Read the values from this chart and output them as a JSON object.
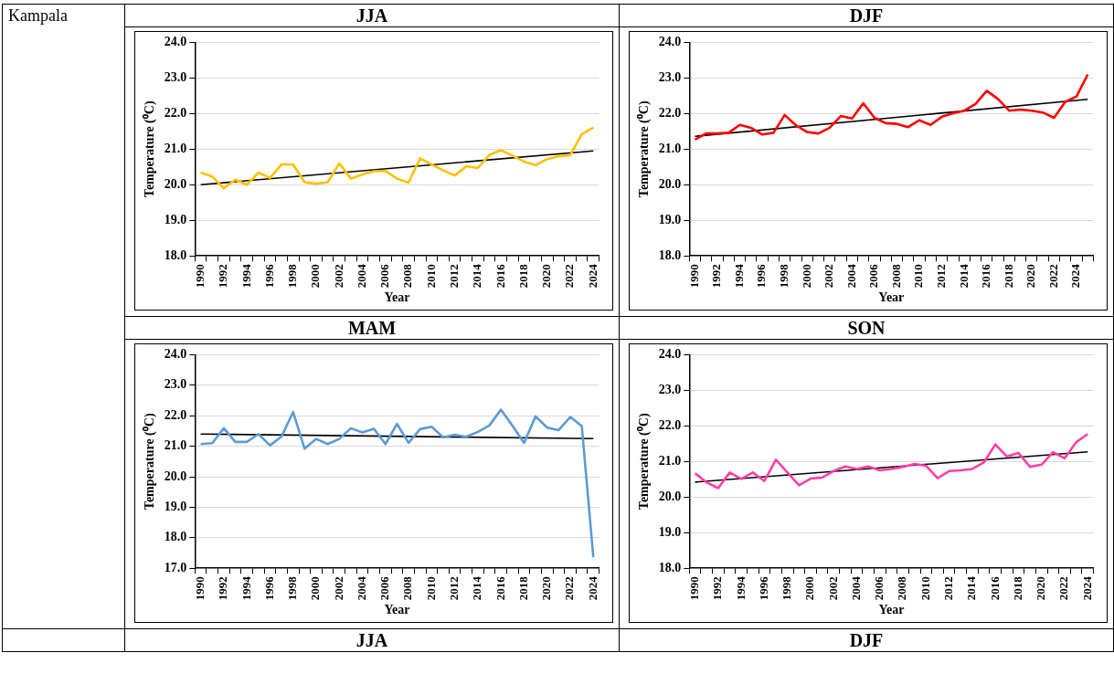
{
  "chart_data": [
    {
      "type": "line",
      "title": "JJA",
      "xlabel": "Year",
      "ylabel": "Temperature (⁰C)",
      "annotations": [
        "Kampala"
      ],
      "grid": "y",
      "legend": false,
      "marker": "none",
      "categories": [
        "1990",
        null,
        "1992",
        null,
        "1994",
        null,
        "1996",
        null,
        "1998",
        null,
        "2000",
        null,
        "2002",
        null,
        "2004",
        null,
        "2006",
        null,
        "2008",
        null,
        "2010",
        null,
        "2012",
        null,
        "2014",
        null,
        "2016",
        null,
        "2018",
        null,
        "2020",
        null,
        "2022",
        null,
        "2024"
      ],
      "ylim": [
        18,
        24
      ],
      "yticks": [
        {
          "value": 18,
          "label": "18.0"
        },
        {
          "value": 19,
          "label": "19.0"
        },
        {
          "value": 20,
          "label": "20.0"
        },
        {
          "value": 21,
          "label": "21.0"
        },
        {
          "value": 22,
          "label": "22.0"
        },
        {
          "value": 23,
          "label": "23.0"
        },
        {
          "value": 24,
          "label": "24.0"
        }
      ],
      "series": [
        {
          "color": "#ffc000",
          "values": [
            20.34,
            20.23,
            19.9,
            20.14,
            20.0,
            20.34,
            20.19,
            20.57,
            20.57,
            20.07,
            20.03,
            20.07,
            20.6,
            20.17,
            20.29,
            20.38,
            20.39,
            20.17,
            20.06,
            20.74,
            20.57,
            20.4,
            20.26,
            20.52,
            20.47,
            20.84,
            20.97,
            20.82,
            20.65,
            20.55,
            20.72,
            20.8,
            20.83,
            21.42,
            21.61
          ]
        },
        {
          "type": "line",
          "color": "#000000",
          "values": [
            20.0,
            null,
            null,
            null,
            null,
            null,
            null,
            null,
            null,
            null,
            null,
            null,
            null,
            null,
            null,
            null,
            null,
            null,
            null,
            null,
            null,
            null,
            null,
            null,
            null,
            null,
            null,
            null,
            null,
            null,
            null,
            null,
            null,
            null,
            20.95
          ]
        }
      ]
    },
    {
      "type": "line",
      "title": "DJF",
      "xlabel": "Year",
      "ylabel": "Temperature (⁰C)",
      "grid": "y",
      "legend": false,
      "marker": "none",
      "categories": [
        "1990",
        null,
        "1992",
        null,
        "1994",
        null,
        "1996",
        null,
        "1998",
        null,
        "2000",
        null,
        "2002",
        null,
        "2004",
        null,
        "2006",
        null,
        "2008",
        null,
        "2010",
        null,
        "2012",
        null,
        "2014",
        null,
        "2016",
        null,
        "2018",
        null,
        "2020",
        null,
        "2022",
        null,
        "2024",
        null
      ],
      "ylim": [
        18,
        24
      ],
      "yticks": [
        {
          "value": 18,
          "label": "18.0"
        },
        {
          "value": 19,
          "label": "19.0"
        },
        {
          "value": 20,
          "label": "20.0"
        },
        {
          "value": 21,
          "label": "21.0"
        },
        {
          "value": 22,
          "label": "22.0"
        },
        {
          "value": 23,
          "label": "23.0"
        },
        {
          "value": 24,
          "label": "24.0"
        }
      ],
      "series": [
        {
          "color": "#ff0000",
          "values": [
            21.27,
            21.44,
            21.44,
            21.46,
            21.68,
            21.6,
            21.41,
            21.46,
            21.96,
            21.67,
            21.48,
            21.44,
            21.6,
            21.93,
            21.86,
            22.29,
            21.88,
            21.73,
            21.71,
            21.62,
            21.81,
            21.68,
            21.91,
            22.01,
            22.08,
            22.27,
            22.64,
            22.41,
            22.08,
            22.11,
            22.08,
            22.03,
            21.88,
            22.33,
            22.48,
            23.1
          ]
        },
        {
          "type": "line",
          "color": "#000000",
          "values": [
            21.36,
            null,
            null,
            null,
            null,
            null,
            null,
            null,
            null,
            null,
            null,
            null,
            null,
            null,
            null,
            null,
            null,
            null,
            null,
            null,
            null,
            null,
            null,
            null,
            null,
            null,
            null,
            null,
            null,
            null,
            null,
            null,
            null,
            null,
            null,
            22.4
          ]
        }
      ]
    },
    {
      "type": "line",
      "title": "MAM",
      "xlabel": "Year",
      "ylabel": "Temperature (⁰C)",
      "grid": "y",
      "legend": false,
      "marker": "none",
      "categories": [
        "1990",
        null,
        "1992",
        null,
        "1994",
        null,
        "1996",
        null,
        "1998",
        null,
        "2000",
        null,
        "2002",
        null,
        "2004",
        null,
        "2006",
        null,
        "2008",
        null,
        "2010",
        null,
        "2012",
        null,
        "2014",
        null,
        "2016",
        null,
        "2018",
        null,
        "2020",
        null,
        "2022",
        null,
        "2024"
      ],
      "ylim": [
        17,
        24
      ],
      "yticks": [
        {
          "value": 17,
          "label": "17.0"
        },
        {
          "value": 18,
          "label": "18.0"
        },
        {
          "value": 19,
          "label": "19.0"
        },
        {
          "value": 20,
          "label": "20.0"
        },
        {
          "value": 21,
          "label": "21.0"
        },
        {
          "value": 22,
          "label": "22.0"
        },
        {
          "value": 23,
          "label": "23.0"
        },
        {
          "value": 24,
          "label": "24.0"
        }
      ],
      "series": [
        {
          "color": "#5b9bd5",
          "values": [
            21.07,
            21.1,
            21.59,
            21.14,
            21.14,
            21.4,
            21.03,
            21.32,
            22.12,
            20.92,
            21.24,
            21.07,
            21.24,
            21.59,
            21.45,
            21.57,
            21.07,
            21.73,
            21.11,
            21.56,
            21.64,
            21.29,
            21.38,
            21.31,
            21.47,
            21.68,
            22.2,
            21.67,
            21.11,
            21.98,
            21.61,
            21.53,
            21.96,
            21.66,
            17.36
          ]
        },
        {
          "type": "line",
          "color": "#000000",
          "values": [
            21.4,
            null,
            null,
            null,
            null,
            null,
            null,
            null,
            null,
            null,
            null,
            null,
            null,
            null,
            null,
            null,
            null,
            null,
            null,
            null,
            null,
            null,
            null,
            null,
            null,
            null,
            null,
            null,
            null,
            null,
            null,
            null,
            null,
            null,
            21.25
          ]
        }
      ]
    },
    {
      "type": "line",
      "title": "SON",
      "xlabel": "Year",
      "ylabel": "Temperature (⁰C)",
      "grid": "y",
      "legend": false,
      "marker": "none",
      "categories": [
        "1990",
        null,
        "1992",
        null,
        "1994",
        null,
        "1996",
        null,
        "1998",
        null,
        "2000",
        null,
        "2002",
        null,
        "2004",
        null,
        "2006",
        null,
        "2008",
        null,
        "2010",
        null,
        "2012",
        null,
        "2014",
        null,
        "2016",
        null,
        "2018",
        null,
        "2020",
        null,
        "2022",
        null,
        "2024"
      ],
      "ylim": [
        18,
        24
      ],
      "yticks": [
        {
          "value": 18,
          "label": "18.0"
        },
        {
          "value": 19,
          "label": "19.0"
        },
        {
          "value": 20,
          "label": "20.0"
        },
        {
          "value": 21,
          "label": "21.0"
        },
        {
          "value": 22,
          "label": "22.0"
        },
        {
          "value": 23,
          "label": "23.0"
        },
        {
          "value": 24,
          "label": "24.0"
        }
      ],
      "series": [
        {
          "color": "#ff3fa6",
          "values": [
            20.67,
            20.41,
            20.25,
            20.69,
            20.51,
            20.69,
            20.45,
            21.05,
            20.69,
            20.33,
            20.52,
            20.55,
            20.73,
            20.86,
            20.79,
            20.86,
            20.75,
            20.79,
            20.85,
            20.93,
            20.88,
            20.53,
            20.73,
            20.75,
            20.79,
            20.97,
            21.48,
            21.14,
            21.24,
            20.85,
            20.91,
            21.26,
            21.09,
            21.54,
            21.77
          ]
        },
        {
          "type": "line",
          "color": "#000000",
          "values": [
            20.42,
            null,
            null,
            null,
            null,
            null,
            null,
            null,
            null,
            null,
            null,
            null,
            null,
            null,
            null,
            null,
            null,
            null,
            null,
            null,
            null,
            null,
            null,
            null,
            null,
            null,
            null,
            null,
            null,
            null,
            null,
            null,
            null,
            null,
            21.27
          ]
        }
      ]
    },
    {
      "type": "other",
      "annotations": [
        "JJA",
        "DJF"
      ]
    }
  ]
}
